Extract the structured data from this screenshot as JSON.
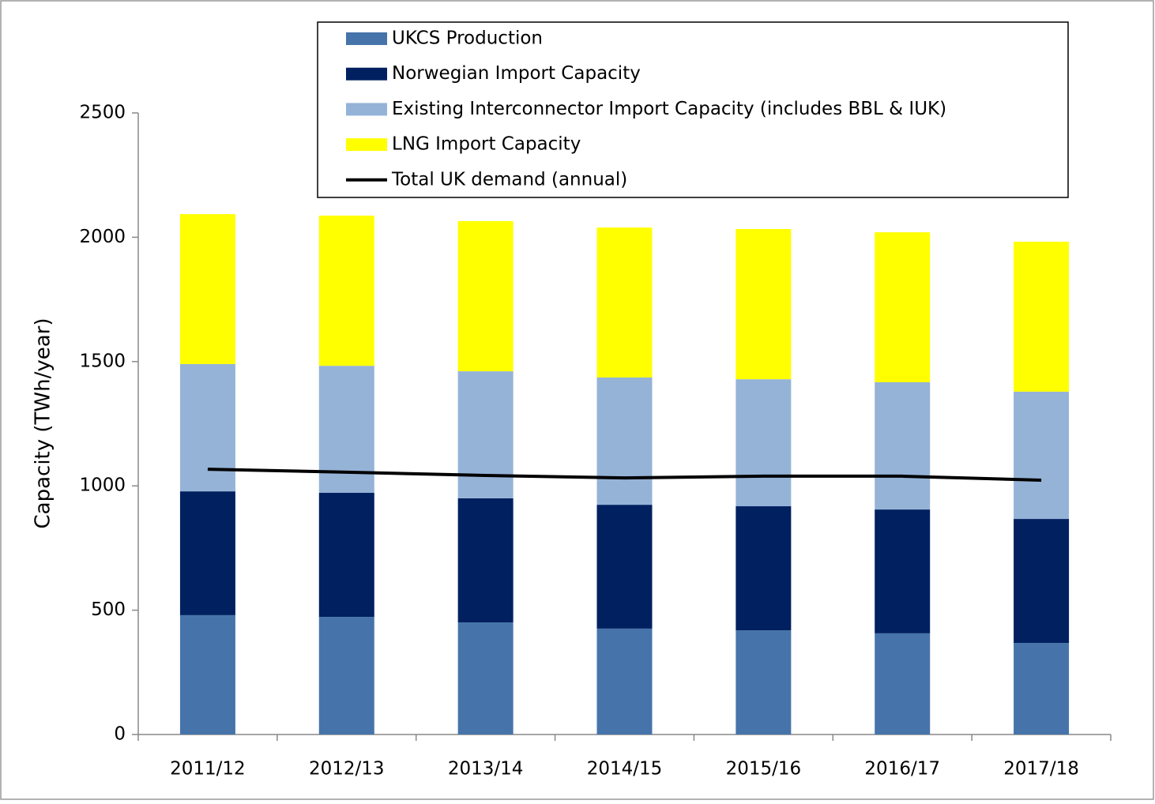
{
  "chart_data": {
    "type": "stacked_bar",
    "y_label": "Capacity (TWh/year)",
    "categories": [
      "2011/12",
      "2012/13",
      "2013/14",
      "2014/15",
      "2015/16",
      "2016/17",
      "2017/18"
    ],
    "series": [
      {
        "name": "UKCS Production",
        "color": "#4674aa",
        "values": [
          480,
          473,
          451,
          426,
          419,
          407,
          368
        ]
      },
      {
        "name": "Norwegian Import Capacity",
        "color": "#002060",
        "values": [
          498,
          499,
          499,
          498,
          499,
          498,
          499
        ]
      },
      {
        "name": "Existing Interconnector Import Capacity (includes BBL & IUK)",
        "color": "#95b3d7",
        "values": [
          512,
          511,
          511,
          512,
          511,
          512,
          512
        ]
      },
      {
        "name": "LNG Import Capacity",
        "color": "#ffff00",
        "values": [
          603,
          604,
          604,
          603,
          604,
          603,
          603
        ]
      },
      {
        "name": "Total UK demand (annual)",
        "type": "line",
        "color": "#000000",
        "values": [
          1067,
          1055,
          1042,
          1032,
          1039,
          1039,
          1023
        ]
      }
    ],
    "ylim": [
      0,
      2500
    ],
    "yticks": [
      0,
      500,
      1000,
      1500,
      2000,
      2500
    ],
    "legend": "top"
  }
}
